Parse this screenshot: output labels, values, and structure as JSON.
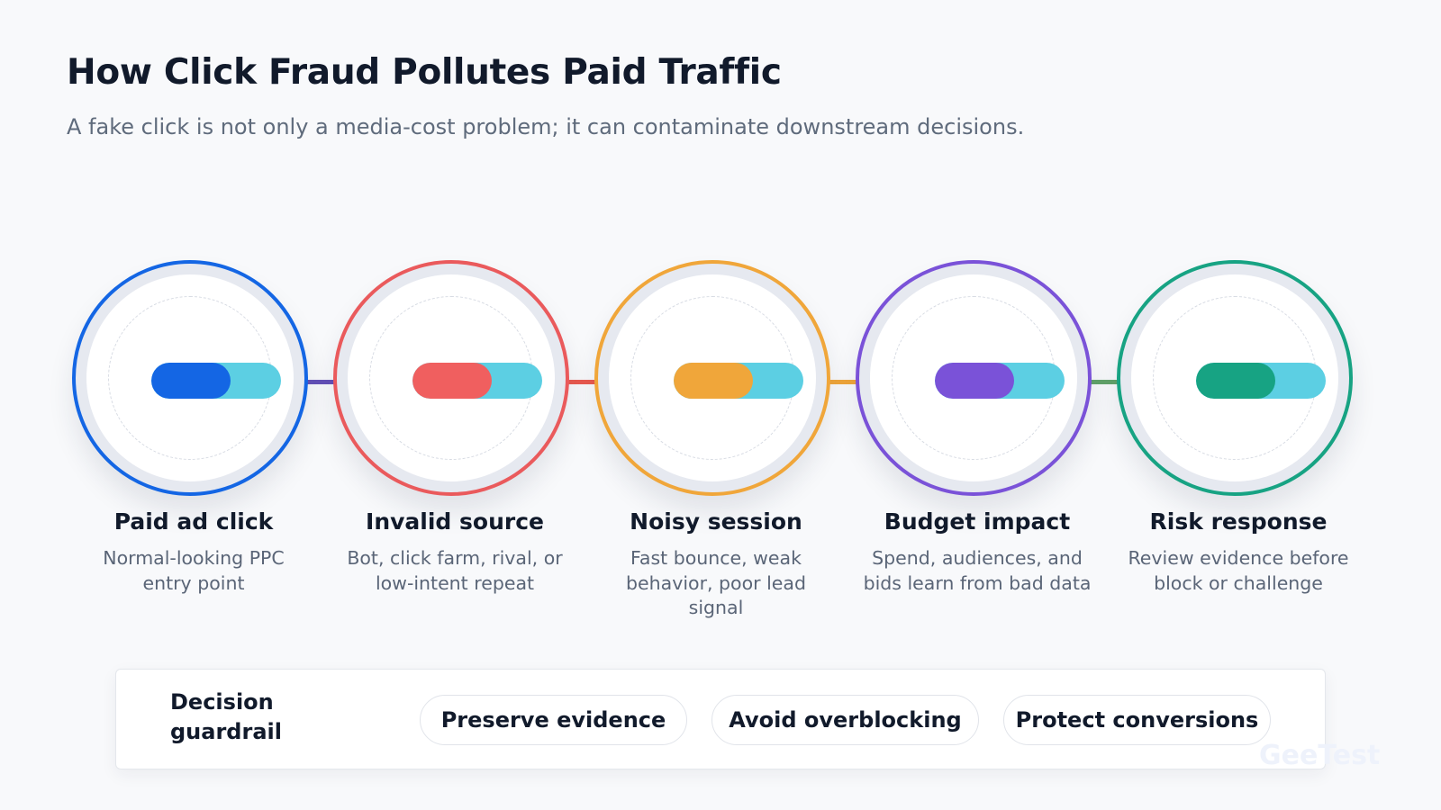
{
  "header": {
    "title": "How Click Fraud Pollutes Paid Traffic",
    "subtitle": "A fake click is not only a media-cost problem; it can contaminate downstream decisions."
  },
  "stages": [
    {
      "label": "Paid ad click",
      "description": "Normal-looking PPC entry point",
      "color": "#1466e4",
      "pill_color": "#1466e4",
      "icon": "toggle-pill-icon"
    },
    {
      "label": "Invalid source",
      "description": "Bot, click farm, rival, or low-intent repeat",
      "color": "#ea5a5c",
      "pill_color": "#f05f5f",
      "icon": "toggle-pill-icon"
    },
    {
      "label": "Noisy session",
      "description": "Fast bounce, weak behavior, poor lead signal",
      "color": "#f0a63a",
      "pill_color": "#f0a63a",
      "icon": "toggle-pill-icon"
    },
    {
      "label": "Budget impact",
      "description": "Spend, audiences, and bids learn from bad data",
      "color": "#7a52d8",
      "pill_color": "#7a52d8",
      "icon": "toggle-pill-icon"
    },
    {
      "label": "Risk response",
      "description": "Review evidence before block or challenge",
      "color": "#17a383",
      "pill_color": "#17a383",
      "icon": "toggle-pill-icon"
    }
  ],
  "pill_secondary_color": "#5ccfe3",
  "connector_colors": [
    "#6451b8",
    "#ea5a4f",
    "#f0a63a",
    "#62a36a"
  ],
  "guardrail": {
    "label": "Decision guardrail",
    "chips": [
      "Preserve evidence",
      "Avoid overblocking",
      "Protect conversions"
    ]
  },
  "watermark": "GeeTest"
}
